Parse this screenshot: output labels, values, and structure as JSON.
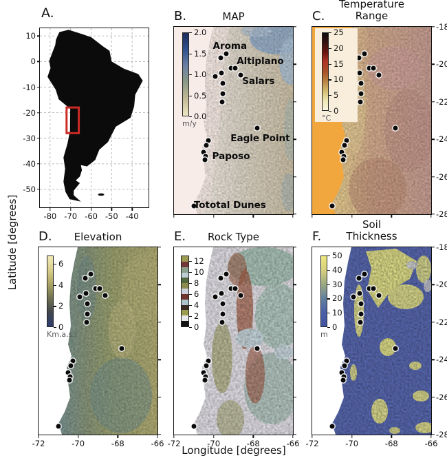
{
  "figure": {
    "xlabel": "Longitude [degrees]",
    "ylabel": "Latitude [degrees]"
  },
  "axes": {
    "lon_ticks": [
      {
        "label": "-72",
        "f": 0.0
      },
      {
        "label": "-70",
        "f": 0.3333
      },
      {
        "label": "-68",
        "f": 0.6667
      },
      {
        "label": "-66",
        "f": 1.0
      }
    ],
    "lat_ticks": [
      {
        "label": "-18",
        "f": 0.0
      },
      {
        "label": "-20",
        "f": 0.2
      },
      {
        "label": "-22",
        "f": 0.4
      },
      {
        "label": "-24",
        "f": 0.6
      },
      {
        "label": "-26",
        "f": 0.8
      },
      {
        "label": "-28",
        "f": 1.0
      }
    ]
  },
  "panel_a": {
    "label": "A.",
    "xticks": [
      {
        "label": "-80",
        "f": 0.094
      },
      {
        "label": "-70",
        "f": 0.283
      },
      {
        "label": "-60",
        "f": 0.472
      },
      {
        "label": "-50",
        "f": 0.66
      },
      {
        "label": "-40",
        "f": 0.849
      }
    ],
    "yticks": [
      {
        "label": "10",
        "f": 0.043
      },
      {
        "label": "0",
        "f": 0.186
      },
      {
        "label": "-10",
        "f": 0.329
      },
      {
        "label": "-20",
        "f": 0.472
      },
      {
        "label": "-30",
        "f": 0.614
      },
      {
        "label": "-40",
        "f": 0.757
      },
      {
        "label": "-50",
        "f": 0.9
      }
    ],
    "study_area_color": "#cc2b25"
  },
  "panel_b": {
    "label": "B.",
    "title": "MAP",
    "colorbar": {
      "unit": "m/y",
      "ticks": [
        {
          "label": "2.0",
          "f": 0.0
        },
        {
          "label": "1.5",
          "f": 0.25
        },
        {
          "label": "1.0",
          "f": 0.5
        },
        {
          "label": "0.5",
          "f": 0.75
        },
        {
          "label": "0.0",
          "f": 1.0
        }
      ],
      "gradient": [
        "#1c2b5a",
        "#30518d",
        "#6b80a5",
        "#8d9a86",
        "#c3ba97",
        "#efe6c4"
      ]
    },
    "site_labels": [
      {
        "text": "Aroma",
        "fx": 0.47,
        "fy": 0.104
      },
      {
        "text": "Altiplano",
        "fx": 0.725,
        "fy": 0.184
      },
      {
        "text": "Salars",
        "fx": 0.71,
        "fy": 0.29
      },
      {
        "text": "Eagle Point",
        "fx": 0.725,
        "fy": 0.594
      },
      {
        "text": "Paposo",
        "fx": 0.48,
        "fy": 0.692
      },
      {
        "text": "Tototal Dunes",
        "fx": 0.47,
        "fy": 0.952
      }
    ]
  },
  "panel_c": {
    "label": "C.",
    "title": [
      "Temperature",
      "Range"
    ],
    "colorbar": {
      "unit": "°C",
      "ticks": [
        {
          "label": "25",
          "f": 0.0
        },
        {
          "label": "20",
          "f": 0.2
        },
        {
          "label": "15",
          "f": 0.4
        },
        {
          "label": "10",
          "f": 0.6
        },
        {
          "label": "5",
          "f": 0.8
        },
        {
          "label": "0",
          "f": 1.0
        }
      ],
      "gradient": [
        "#0d0c0c",
        "#37100f",
        "#6b1511",
        "#b03527",
        "#a85028",
        "#b98343",
        "#d3bc6e",
        "#efe7b4",
        "#f8f4e0"
      ]
    }
  },
  "panel_d": {
    "label": "D.",
    "title": "Elevation",
    "colorbar": {
      "unit": "Km.a.s.l",
      "ticks": [
        {
          "label": "6",
          "f": 0.118
        },
        {
          "label": "4",
          "f": 0.412
        },
        {
          "label": "2",
          "f": 0.706
        },
        {
          "label": "0",
          "f": 1.0
        }
      ],
      "gradient": [
        "#f2ecb6",
        "#d9cd8a",
        "#a9a464",
        "#6f7050",
        "#41464e",
        "#2e3c6e"
      ]
    }
  },
  "panel_e": {
    "label": "E.",
    "title": "Rock Type",
    "colorbar": {
      "unit": "",
      "ticks": [
        {
          "label": "12",
          "f": 0.077
        },
        {
          "label": "10",
          "f": 0.231
        },
        {
          "label": "8",
          "f": 0.385
        },
        {
          "label": "6",
          "f": 0.538
        },
        {
          "label": "4",
          "f": 0.692
        },
        {
          "label": "2",
          "f": 0.846
        },
        {
          "label": "0",
          "f": 1.0
        }
      ],
      "segments": [
        "#9c9a52",
        "#74383a",
        "#8da08e",
        "#bccfd4",
        "#56683f",
        "#8d8d51",
        "#ccd0dc",
        "#6f352c",
        "#aec4cc",
        "#3a2a22",
        "#9c9c50",
        "#e9e9ec",
        "#141414"
      ]
    }
  },
  "panel_f": {
    "label": "F.",
    "title": [
      "Soil",
      "Thickness"
    ],
    "colorbar": {
      "unit": "m",
      "ticks": [
        {
          "label": "50",
          "f": 0.0
        },
        {
          "label": "40",
          "f": 0.2
        },
        {
          "label": "30",
          "f": 0.4
        },
        {
          "label": "20",
          "f": 0.6
        },
        {
          "label": "10",
          "f": 0.8
        },
        {
          "label": "0",
          "f": 1.0
        }
      ],
      "gradient": [
        "#ece77f",
        "#d6cf7c",
        "#9aa981",
        "#62809f",
        "#4b5fa9",
        "#4254a0"
      ]
    }
  },
  "markers": [
    {
      "fx": 0.44,
      "fy": 0.145
    },
    {
      "fx": 0.395,
      "fy": 0.165
    },
    {
      "fx": 0.478,
      "fy": 0.222
    },
    {
      "fx": 0.512,
      "fy": 0.219
    },
    {
      "fx": 0.56,
      "fy": 0.258
    },
    {
      "fx": 0.347,
      "fy": 0.263
    },
    {
      "fx": 0.398,
      "fy": 0.247
    },
    {
      "fx": 0.412,
      "fy": 0.303
    },
    {
      "fx": 0.412,
      "fy": 0.355
    },
    {
      "fx": 0.404,
      "fy": 0.399
    },
    {
      "fx": 0.697,
      "fy": 0.54
    },
    {
      "fx": 0.289,
      "fy": 0.607
    },
    {
      "fx": 0.274,
      "fy": 0.633
    },
    {
      "fx": 0.25,
      "fy": 0.668
    },
    {
      "fx": 0.266,
      "fy": 0.69
    },
    {
      "fx": 0.263,
      "fy": 0.711
    },
    {
      "fx": 0.17,
      "fy": 0.957
    }
  ]
}
